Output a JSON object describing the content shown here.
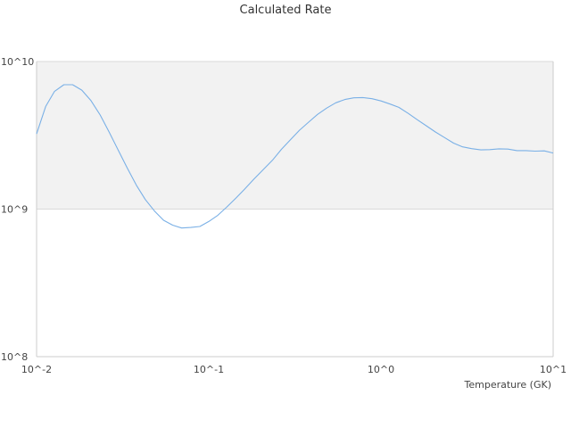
{
  "chart_data": {
    "type": "line",
    "title": "Calculated Rate",
    "xlabel": "Temperature (GK)",
    "ylabel": "",
    "xscale": "log",
    "yscale": "log",
    "xlim": [
      0.01,
      10
    ],
    "ylim": [
      100000000,
      10000000000
    ],
    "grid": "horizontal bands",
    "legend": "none",
    "colors": {
      "line": "#7ab0e6",
      "band": "#f2f2f2",
      "gridline": "#d9d9d9",
      "axis": "#cccccc",
      "text": "#444444"
    },
    "x_ticks": [
      "10^-2",
      "10^-1",
      "10^0",
      "10^1"
    ],
    "y_ticks": [
      "10^8",
      "10^9",
      "10^10"
    ],
    "series": [
      {
        "x": [
          0.01,
          0.0113,
          0.0127,
          0.0144,
          0.0162,
          0.0183,
          0.0207,
          0.0234,
          0.0264,
          0.0298,
          0.0336,
          0.038,
          0.0428,
          0.0484,
          0.0546,
          0.0617,
          0.0696,
          0.0786,
          0.0888,
          0.1,
          0.113,
          0.127,
          0.144,
          0.162,
          0.183,
          0.207,
          0.234,
          0.264,
          0.298,
          0.336,
          0.38,
          0.428,
          0.484,
          0.546,
          0.617,
          0.696,
          0.786,
          0.888,
          1.0,
          1.13,
          1.27,
          1.44,
          1.62,
          1.83,
          2.07,
          2.34,
          2.64,
          2.98,
          3.36,
          3.8,
          4.28,
          4.84,
          5.46,
          6.17,
          6.96,
          7.86,
          8.88,
          10.0
        ],
        "y": [
          3230000000,
          4960000000,
          6270000000,
          6960000000,
          6960000000,
          6400000000,
          5430000000,
          4340000000,
          3320000000,
          2510000000,
          1900000000,
          1450000000,
          1160000000,
          970000000,
          840000000,
          778000000,
          745000000,
          751000000,
          762000000,
          824000000,
          909000000,
          1030000000,
          1190000000,
          1370000000,
          1600000000,
          1850000000,
          2140000000,
          2540000000,
          2950000000,
          3420000000,
          3880000000,
          4380000000,
          4840000000,
          5250000000,
          5530000000,
          5680000000,
          5700000000,
          5600000000,
          5410000000,
          5150000000,
          4890000000,
          4450000000,
          4040000000,
          3670000000,
          3330000000,
          3050000000,
          2800000000,
          2640000000,
          2570000000,
          2520000000,
          2530000000,
          2560000000,
          2550000000,
          2490000000,
          2490000000,
          2470000000,
          2480000000,
          2400000000
        ]
      }
    ]
  }
}
